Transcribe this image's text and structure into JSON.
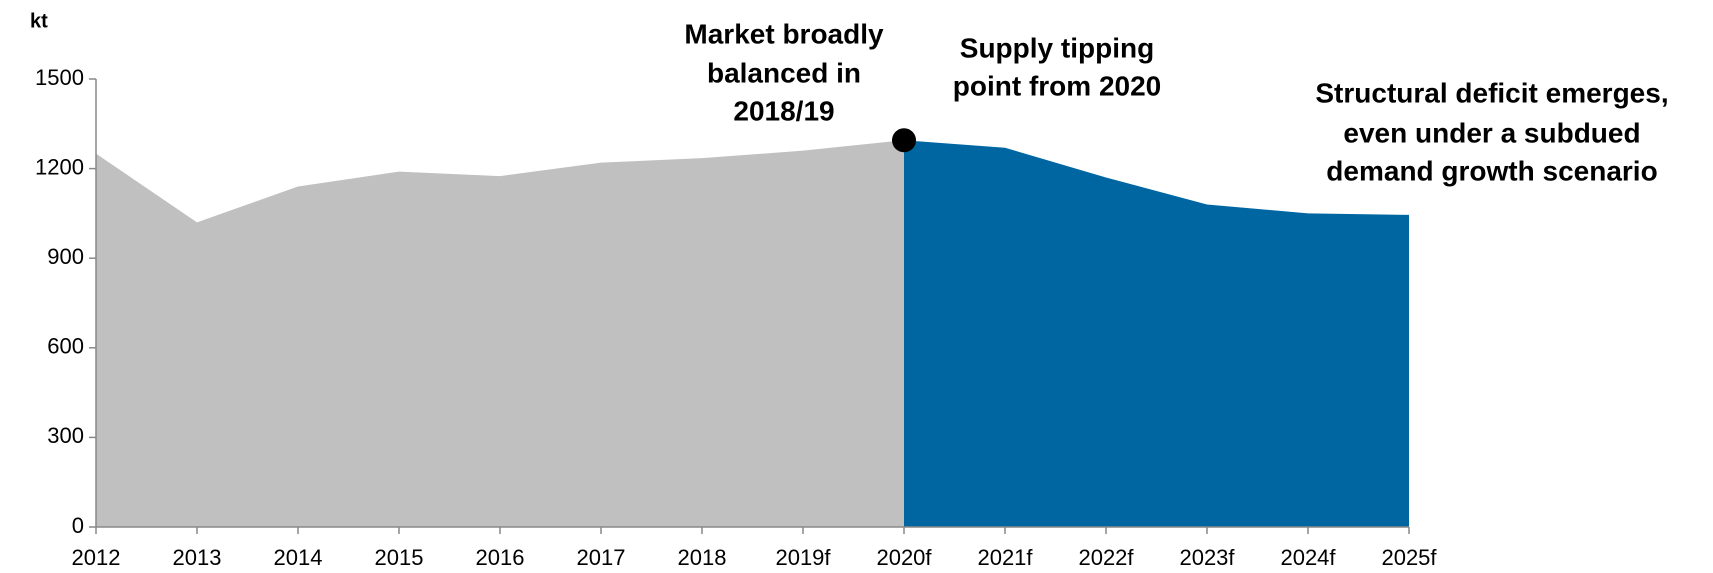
{
  "chart_data": {
    "type": "area",
    "y_label": "kt",
    "categories": [
      "2012",
      "2013",
      "2014",
      "2015",
      "2016",
      "2017",
      "2018",
      "2019f",
      "2020f",
      "2021f",
      "2022f",
      "2023f",
      "2024f",
      "2025f"
    ],
    "series": [
      {
        "color": "#c0c0c0",
        "values": [
          1250,
          1020,
          1140,
          1190,
          1175,
          1220,
          1235,
          1260,
          1295,
          null,
          null,
          null,
          null,
          null
        ]
      },
      {
        "color": "#0066a1",
        "values": [
          null,
          null,
          null,
          null,
          null,
          null,
          null,
          null,
          1295,
          1270,
          1170,
          1080,
          1050,
          1045
        ]
      }
    ],
    "marker": {
      "series": 0,
      "index": 8,
      "color": "#000000"
    },
    "ylim": [
      0,
      1500
    ],
    "yticks": [
      0,
      300,
      600,
      900,
      1200,
      1500
    ],
    "annotations": [
      [
        "Market broadly",
        "balanced in",
        "2018/19"
      ],
      [
        "Supply tipping",
        "point from 2020"
      ],
      [
        "Structural deficit emerges,",
        "even under a subdued",
        "demand growth scenario"
      ]
    ]
  }
}
